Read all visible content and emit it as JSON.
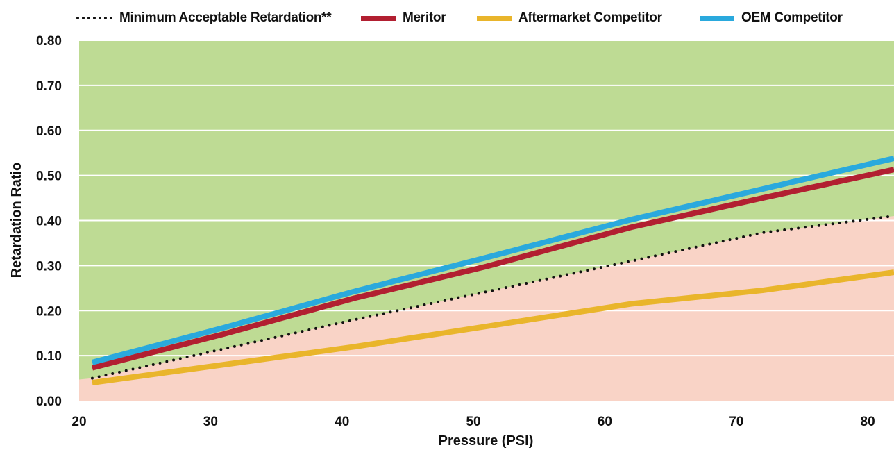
{
  "chart_data": {
    "type": "line",
    "xlabel": "Pressure (PSI)",
    "ylabel": "Retardation Ratio",
    "xlim": [
      20,
      82
    ],
    "ylim": [
      0,
      0.8
    ],
    "x_ticks": [
      "20",
      "30",
      "40",
      "50",
      "60",
      "70",
      "80"
    ],
    "y_ticks": [
      "0.00",
      "0.10",
      "0.20",
      "0.30",
      "0.40",
      "0.50",
      "0.60",
      "0.70",
      "0.80"
    ],
    "grid": true,
    "legend_position": "top",
    "background_colors": {
      "above_threshold": "#bedb94",
      "below_threshold": "#f9d3c6"
    },
    "series": [
      {
        "name": "Minimum Acceptable Retardation**",
        "color": "#111111",
        "style": "dotted",
        "x": [
          21,
          41,
          62,
          72,
          82
        ],
        "y": [
          0.05,
          0.18,
          0.31,
          0.373,
          0.41
        ]
      },
      {
        "name": "Meritor",
        "color": "#b21f31",
        "style": "solid",
        "x": [
          21,
          31,
          41,
          51,
          62,
          72,
          82
        ],
        "y": [
          0.073,
          0.148,
          0.228,
          0.298,
          0.385,
          0.45,
          0.513
        ]
      },
      {
        "name": "Aftermarket Competitor",
        "color": "#e9b52b",
        "style": "solid",
        "x": [
          21,
          31,
          41,
          51,
          62,
          72,
          82
        ],
        "y": [
          0.04,
          0.08,
          0.12,
          0.165,
          0.215,
          0.245,
          0.285
        ]
      },
      {
        "name": "OEM Competitor",
        "color": "#2aa9dd",
        "style": "solid",
        "x": [
          21,
          31,
          41,
          51,
          62,
          72,
          82
        ],
        "y": [
          0.085,
          0.162,
          0.243,
          0.318,
          0.402,
          0.47,
          0.538
        ]
      }
    ]
  }
}
